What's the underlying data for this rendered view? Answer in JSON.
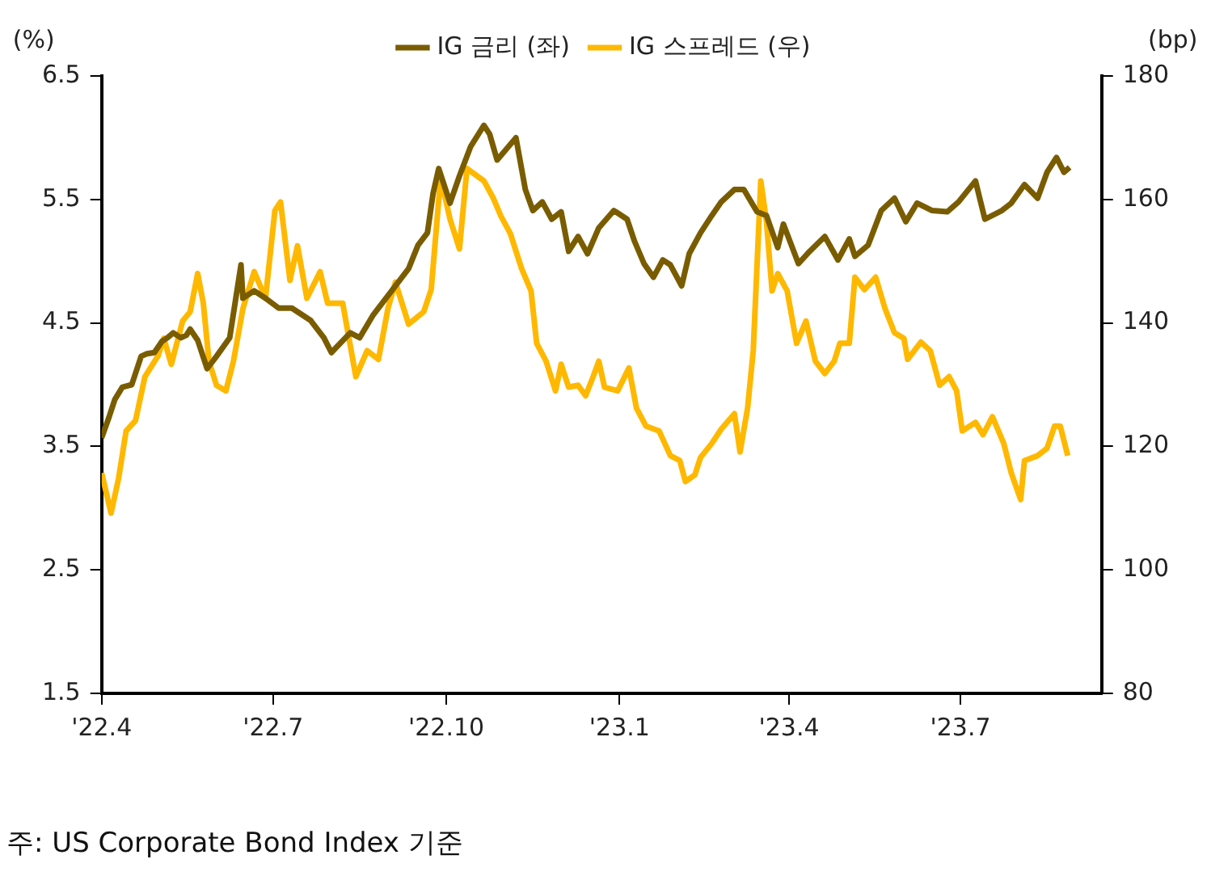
{
  "chart_data": {
    "type": "line",
    "ylabel": "(%)",
    "y2label": "(bp)",
    "legend": "top",
    "grid": false,
    "marker": "none",
    "line_style": "solid",
    "xlim": [
      "2022-04-01",
      "2023-09-14"
    ],
    "xticks": [
      {
        "value": "2022-04-01",
        "label": "'22.4"
      },
      {
        "value": "2022-07-01",
        "label": "'22.7"
      },
      {
        "value": "2022-10-01",
        "label": "'22.10"
      },
      {
        "value": "2023-01-01",
        "label": "'23.1"
      },
      {
        "value": "2023-04-01",
        "label": "'23.4"
      },
      {
        "value": "2023-07-01",
        "label": "'23.7"
      }
    ],
    "ylim": [
      1.5,
      6.5
    ],
    "yticks": [
      1.5,
      2.5,
      3.5,
      4.5,
      5.5,
      6.5
    ],
    "y2lim": [
      80,
      180
    ],
    "y2ticks": [
      80,
      100,
      120,
      140,
      160,
      180
    ],
    "annotations": [
      "주: US Corporate Bond Index 기준"
    ],
    "series": [
      {
        "name": "IG 금리 (좌)",
        "color": "#7a5c00",
        "x": [
          "2022-04-01",
          "2022-04-05",
          "2022-04-08",
          "2022-04-12",
          "2022-04-17",
          "2022-04-22",
          "2022-04-25",
          "2022-04-29",
          "2022-05-03",
          "2022-05-06",
          "2022-05-09",
          "2022-05-13",
          "2022-05-16",
          "2022-05-18",
          "2022-05-22",
          "2022-05-27",
          "2022-06-01",
          "2022-06-08",
          "2022-06-14",
          "2022-06-15",
          "2022-06-21",
          "2022-06-27",
          "2022-07-04",
          "2022-07-11",
          "2022-07-21",
          "2022-07-28",
          "2022-08-01",
          "2022-08-11",
          "2022-08-16",
          "2022-08-23",
          "2022-09-02",
          "2022-09-11",
          "2022-09-16",
          "2022-09-21",
          "2022-09-24",
          "2022-09-27",
          "2022-10-03",
          "2022-10-08",
          "2022-10-14",
          "2022-10-21",
          "2022-10-24",
          "2022-10-28",
          "2022-11-07",
          "2022-11-12",
          "2022-11-16",
          "2022-11-21",
          "2022-11-26",
          "2022-12-01",
          "2022-12-05",
          "2022-12-10",
          "2022-12-15",
          "2022-12-21",
          "2022-12-29",
          "2023-01-05",
          "2023-01-09",
          "2023-01-14",
          "2023-01-19",
          "2023-01-24",
          "2023-01-28",
          "2023-02-03",
          "2023-02-07",
          "2023-02-13",
          "2023-02-19",
          "2023-02-24",
          "2023-03-03",
          "2023-03-08",
          "2023-03-15",
          "2023-03-20",
          "2023-03-26",
          "2023-03-29",
          "2023-04-06",
          "2023-04-12",
          "2023-04-20",
          "2023-04-27",
          "2023-05-03",
          "2023-05-06",
          "2023-05-13",
          "2023-05-20",
          "2023-05-27",
          "2023-06-02",
          "2023-06-08",
          "2023-06-16",
          "2023-06-24",
          "2023-06-30",
          "2023-07-09",
          "2023-07-14",
          "2023-07-23",
          "2023-07-28",
          "2023-08-04",
          "2023-08-11",
          "2023-08-16",
          "2023-08-21",
          "2023-08-25",
          "2023-08-28"
        ],
        "values": [
          3.57,
          3.74,
          3.88,
          3.98,
          4.0,
          4.23,
          4.25,
          4.26,
          4.35,
          4.38,
          4.42,
          4.38,
          4.4,
          4.45,
          4.36,
          4.13,
          4.23,
          4.38,
          4.97,
          4.7,
          4.76,
          4.7,
          4.62,
          4.62,
          4.52,
          4.38,
          4.26,
          4.42,
          4.38,
          4.56,
          4.76,
          4.94,
          5.13,
          5.23,
          5.55,
          5.75,
          5.47,
          5.69,
          5.93,
          6.1,
          6.03,
          5.82,
          6.0,
          5.58,
          5.41,
          5.48,
          5.34,
          5.4,
          5.08,
          5.2,
          5.06,
          5.27,
          5.41,
          5.34,
          5.16,
          4.98,
          4.87,
          5.01,
          4.97,
          4.8,
          5.06,
          5.23,
          5.37,
          5.48,
          5.58,
          5.58,
          5.4,
          5.37,
          5.11,
          5.3,
          4.98,
          5.08,
          5.2,
          5.01,
          5.18,
          5.04,
          5.13,
          5.41,
          5.51,
          5.32,
          5.47,
          5.41,
          5.4,
          5.48,
          5.65,
          5.34,
          5.41,
          5.47,
          5.62,
          5.51,
          5.72,
          5.84,
          5.72,
          5.76
        ]
      },
      {
        "name": "IG 스프레드 (우)",
        "color": "#ffb800",
        "axis": "y2",
        "x": [
          "2022-04-01",
          "2022-04-06",
          "2022-04-10",
          "2022-04-14",
          "2022-04-19",
          "2022-04-24",
          "2022-05-01",
          "2022-05-04",
          "2022-05-08",
          "2022-05-14",
          "2022-05-18",
          "2022-05-22",
          "2022-05-25",
          "2022-05-28",
          "2022-06-01",
          "2022-06-06",
          "2022-06-10",
          "2022-06-15",
          "2022-06-21",
          "2022-06-27",
          "2022-07-02",
          "2022-07-05",
          "2022-07-10",
          "2022-07-14",
          "2022-07-19",
          "2022-07-26",
          "2022-07-30",
          "2022-08-07",
          "2022-08-14",
          "2022-08-20",
          "2022-08-26",
          "2022-08-31",
          "2022-09-04",
          "2022-09-11",
          "2022-09-19",
          "2022-09-23",
          "2022-09-28",
          "2022-10-03",
          "2022-10-08",
          "2022-10-12",
          "2022-10-21",
          "2022-10-26",
          "2022-10-30",
          "2022-11-04",
          "2022-11-10",
          "2022-11-15",
          "2022-11-18",
          "2022-11-23",
          "2022-11-28",
          "2022-12-01",
          "2022-12-05",
          "2022-12-10",
          "2022-12-14",
          "2022-12-18",
          "2022-12-21",
          "2022-12-24",
          "2022-12-31",
          "2023-01-06",
          "2023-01-10",
          "2023-01-15",
          "2023-01-22",
          "2023-01-28",
          "2023-02-02",
          "2023-02-05",
          "2023-02-10",
          "2023-02-13",
          "2023-02-19",
          "2023-02-24",
          "2023-03-03",
          "2023-03-06",
          "2023-03-10",
          "2023-03-13",
          "2023-03-17",
          "2023-03-20",
          "2023-03-23",
          "2023-03-26",
          "2023-03-31",
          "2023-04-05",
          "2023-04-10",
          "2023-04-15",
          "2023-04-20",
          "2023-04-25",
          "2023-04-28",
          "2023-05-03",
          "2023-05-06",
          "2023-05-11",
          "2023-05-17",
          "2023-05-22",
          "2023-05-27",
          "2023-06-01",
          "2023-06-03",
          "2023-06-10",
          "2023-06-15",
          "2023-06-20",
          "2023-06-25",
          "2023-06-29",
          "2023-07-02",
          "2023-07-09",
          "2023-07-13",
          "2023-07-18",
          "2023-07-24",
          "2023-07-28",
          "2023-08-02",
          "2023-08-04",
          "2023-08-11",
          "2023-08-16",
          "2023-08-20",
          "2023-08-23",
          "2023-08-27"
        ],
        "values": [
          115.7,
          109.2,
          114.8,
          122.5,
          124.2,
          131.3,
          134.7,
          137.5,
          133.3,
          140.3,
          141.8,
          148.0,
          143.2,
          133.8,
          129.9,
          129.0,
          133.8,
          142.3,
          148.3,
          144.0,
          158.2,
          159.6,
          146.9,
          152.5,
          144.0,
          148.3,
          143.2,
          143.2,
          131.3,
          135.5,
          134.1,
          142.3,
          146.6,
          139.8,
          141.8,
          145.4,
          163.6,
          156.8,
          152.0,
          165.0,
          163.0,
          160.2,
          157.3,
          154.5,
          148.8,
          145.2,
          136.7,
          133.8,
          129.0,
          133.3,
          129.6,
          129.9,
          128.2,
          131.3,
          133.8,
          129.6,
          129.0,
          132.7,
          126.2,
          123.3,
          122.5,
          118.5,
          117.7,
          114.3,
          115.4,
          118.2,
          120.5,
          122.8,
          125.3,
          119.1,
          126.2,
          135.5,
          163.0,
          156.5,
          145.2,
          148.0,
          145.2,
          136.7,
          140.3,
          133.8,
          131.8,
          133.8,
          136.7,
          136.7,
          147.4,
          145.4,
          147.4,
          142.3,
          138.4,
          137.5,
          134.1,
          136.9,
          135.5,
          129.9,
          131.3,
          129.0,
          122.5,
          123.9,
          121.9,
          124.8,
          120.5,
          115.7,
          111.4,
          117.7,
          118.5,
          119.7,
          123.3,
          123.3,
          118.5
        ]
      }
    ]
  }
}
